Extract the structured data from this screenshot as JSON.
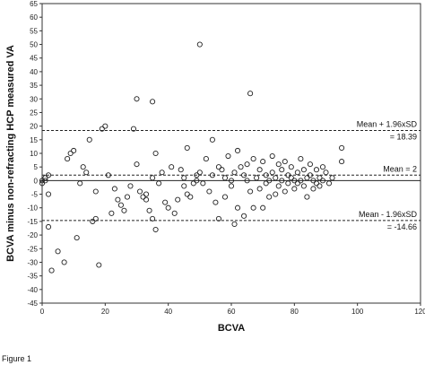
{
  "caption": "Figure 1",
  "chart_data": {
    "type": "scatter",
    "xlabel": "BCVA",
    "ylabel": "BCVA minus non-refracting HCP measured VA",
    "xlim": [
      0,
      120
    ],
    "ylim": [
      -45,
      65
    ],
    "xticks": [
      0,
      20,
      40,
      60,
      80,
      100,
      120
    ],
    "yticks": [
      -45,
      -40,
      -35,
      -30,
      -25,
      -20,
      -15,
      -10,
      -5,
      0,
      5,
      10,
      15,
      20,
      25,
      30,
      35,
      40,
      45,
      50,
      55,
      60,
      65
    ],
    "grid": false,
    "marker": "open-circle",
    "reference_lines": [
      {
        "name": "zero",
        "y": 0,
        "style": "solid"
      },
      {
        "name": "upper-loa",
        "y": 18.39,
        "style": "dashed",
        "label": "Mean + 1.96xSD",
        "value_label": "= 18.39"
      },
      {
        "name": "mean",
        "y": 2,
        "style": "dashed",
        "label": "Mean = 2"
      },
      {
        "name": "lower-loa",
        "y": -14.66,
        "style": "dashed",
        "label": "Mean - 1.96xSD",
        "value_label": "= -14.66"
      }
    ],
    "points": [
      [
        0,
        0
      ],
      [
        0,
        -1
      ],
      [
        1,
        0
      ],
      [
        1,
        1
      ],
      [
        2,
        2
      ],
      [
        2,
        -5
      ],
      [
        2,
        -17
      ],
      [
        3,
        -33
      ],
      [
        5,
        -26
      ],
      [
        7,
        -30
      ],
      [
        8,
        8
      ],
      [
        9,
        10
      ],
      [
        10,
        11
      ],
      [
        11,
        -21
      ],
      [
        12,
        -1
      ],
      [
        13,
        5
      ],
      [
        14,
        3
      ],
      [
        15,
        15
      ],
      [
        16,
        -15
      ],
      [
        17,
        -14
      ],
      [
        17,
        -4
      ],
      [
        18,
        -31
      ],
      [
        19,
        19
      ],
      [
        20,
        20
      ],
      [
        21,
        2
      ],
      [
        22,
        -12
      ],
      [
        23,
        -3
      ],
      [
        24,
        -7
      ],
      [
        25,
        -9
      ],
      [
        26,
        -11
      ],
      [
        27,
        -6
      ],
      [
        28,
        -2
      ],
      [
        29,
        19
      ],
      [
        30,
        6
      ],
      [
        31,
        -4
      ],
      [
        32,
        -6
      ],
      [
        33,
        -7
      ],
      [
        34,
        -11
      ],
      [
        35,
        -14
      ],
      [
        36,
        -18
      ],
      [
        30,
        30
      ],
      [
        33,
        -5
      ],
      [
        35,
        1
      ],
      [
        35,
        29
      ],
      [
        36,
        10
      ],
      [
        37,
        -1
      ],
      [
        38,
        3
      ],
      [
        39,
        -8
      ],
      [
        40,
        -10
      ],
      [
        41,
        5
      ],
      [
        42,
        -12
      ],
      [
        43,
        -7
      ],
      [
        44,
        4
      ],
      [
        45,
        -2
      ],
      [
        45,
        1
      ],
      [
        46,
        -5
      ],
      [
        46,
        12
      ],
      [
        47,
        -6
      ],
      [
        48,
        -1
      ],
      [
        49,
        0
      ],
      [
        49,
        2
      ],
      [
        50,
        50
      ],
      [
        50,
        3
      ],
      [
        51,
        -1
      ],
      [
        52,
        8
      ],
      [
        53,
        -4
      ],
      [
        54,
        2
      ],
      [
        54,
        15
      ],
      [
        55,
        -8
      ],
      [
        56,
        5
      ],
      [
        56,
        -14
      ],
      [
        57,
        4
      ],
      [
        58,
        -6
      ],
      [
        58,
        1
      ],
      [
        59,
        9
      ],
      [
        60,
        -2
      ],
      [
        60,
        0
      ],
      [
        61,
        3
      ],
      [
        61,
        -16
      ],
      [
        62,
        11
      ],
      [
        62,
        -10
      ],
      [
        63,
        5
      ],
      [
        64,
        2
      ],
      [
        64,
        -13
      ],
      [
        65,
        0
      ],
      [
        65,
        6
      ],
      [
        66,
        -4
      ],
      [
        66,
        32
      ],
      [
        67,
        8
      ],
      [
        67,
        -10
      ],
      [
        68,
        1
      ],
      [
        69,
        4
      ],
      [
        69,
        -3
      ],
      [
        70,
        7
      ],
      [
        70,
        -10
      ],
      [
        71,
        2
      ],
      [
        71,
        -1
      ],
      [
        72,
        -6
      ],
      [
        72,
        0
      ],
      [
        73,
        3
      ],
      [
        73,
        9
      ],
      [
        74,
        -5
      ],
      [
        74,
        1
      ],
      [
        75,
        6
      ],
      [
        75,
        -2
      ],
      [
        76,
        0
      ],
      [
        76,
        4
      ],
      [
        77,
        -4
      ],
      [
        77,
        7
      ],
      [
        78,
        2
      ],
      [
        78,
        -1
      ],
      [
        79,
        1
      ],
      [
        79,
        5
      ],
      [
        80,
        -3
      ],
      [
        80,
        0
      ],
      [
        81,
        3
      ],
      [
        81,
        -1
      ],
      [
        82,
        0
      ],
      [
        82,
        8
      ],
      [
        83,
        -2
      ],
      [
        83,
        4
      ],
      [
        84,
        1
      ],
      [
        84,
        -6
      ],
      [
        85,
        6
      ],
      [
        85,
        2
      ],
      [
        86,
        -3
      ],
      [
        86,
        0
      ],
      [
        87,
        4
      ],
      [
        87,
        -1
      ],
      [
        88,
        1
      ],
      [
        88,
        -2
      ],
      [
        89,
        5
      ],
      [
        89,
        0
      ],
      [
        90,
        3
      ],
      [
        91,
        -1
      ],
      [
        92,
        1
      ],
      [
        95,
        12
      ],
      [
        95,
        7
      ]
    ]
  }
}
